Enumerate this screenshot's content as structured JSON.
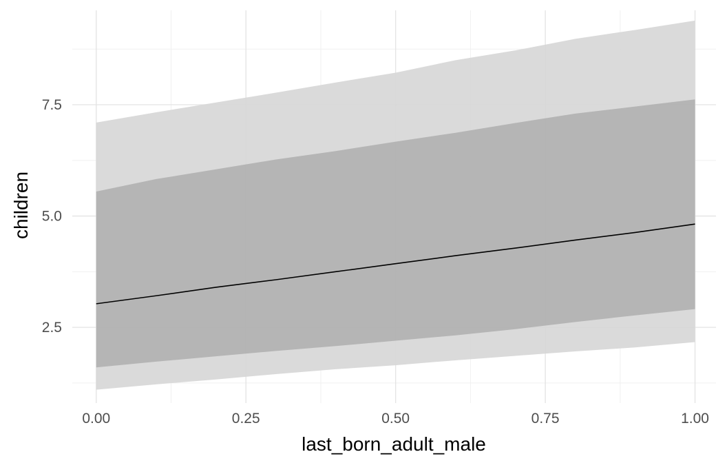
{
  "chart_data": {
    "type": "area",
    "title": "",
    "xlabel": "last_born_adult_male",
    "ylabel": "children",
    "xlim": [
      -0.04,
      1.035
    ],
    "ylim": [
      0.8,
      9.62
    ],
    "x_ticks": [
      0.0,
      0.25,
      0.5,
      0.75,
      1.0
    ],
    "x_tick_labels": [
      "0.00",
      "0.25",
      "0.50",
      "0.75",
      "1.00"
    ],
    "y_ticks": [
      2.5,
      5.0,
      7.5
    ],
    "y_tick_labels": [
      "2.5",
      "5.0",
      "7.5"
    ],
    "grid": true,
    "legend": "none",
    "x": [
      0.0,
      0.1,
      0.2,
      0.3,
      0.4,
      0.5,
      0.6,
      0.7,
      0.8,
      0.9,
      1.0
    ],
    "series": [
      {
        "role": "outer_band",
        "color": "#d6d6d6",
        "lower": [
          1.1,
          1.22,
          1.33,
          1.45,
          1.56,
          1.65,
          1.76,
          1.86,
          1.96,
          2.05,
          2.17
        ],
        "upper": [
          7.1,
          7.33,
          7.55,
          7.77,
          8.0,
          8.22,
          8.5,
          8.72,
          8.98,
          9.18,
          9.39
        ]
      },
      {
        "role": "inner_band",
        "color": "#b0b0b0",
        "lower": [
          1.6,
          1.73,
          1.85,
          1.97,
          2.08,
          2.2,
          2.32,
          2.46,
          2.62,
          2.77,
          2.91
        ],
        "upper": [
          5.55,
          5.83,
          6.05,
          6.27,
          6.46,
          6.67,
          6.87,
          7.09,
          7.3,
          7.46,
          7.62
        ]
      },
      {
        "role": "mean_line",
        "color": "#000000",
        "values": [
          3.03,
          3.21,
          3.4,
          3.57,
          3.75,
          3.93,
          4.11,
          4.28,
          4.46,
          4.63,
          4.82
        ]
      }
    ]
  }
}
